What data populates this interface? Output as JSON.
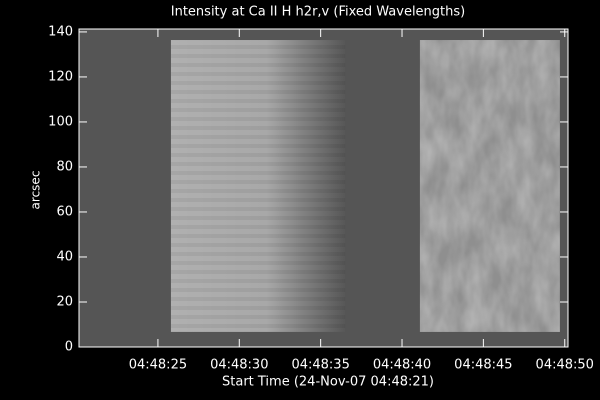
{
  "chart_data": {
    "type": "image",
    "title": "Intensity at Ca II H h2r,v (Fixed Wavelengths)",
    "xlabel": "Start Time (24-Nov-07 04:48:21)",
    "ylabel": "arcsec",
    "xlim": [
      20.15,
      50.2
    ],
    "xticks": [
      {
        "value": 25,
        "label": "04:48:25"
      },
      {
        "value": 30,
        "label": "04:48:30"
      },
      {
        "value": 35,
        "label": "04:48:35"
      },
      {
        "value": 40,
        "label": "04:48:40"
      },
      {
        "value": 45,
        "label": "04:48:45"
      },
      {
        "value": 50,
        "label": "04:48:50"
      }
    ],
    "ylim": [
      0,
      141.3
    ],
    "yticks": [
      0,
      20,
      40,
      60,
      80,
      100,
      120,
      140
    ],
    "images": [
      {
        "x": [
          25.8,
          36.5
        ],
        "y": [
          6.7,
          136.4
        ]
      },
      {
        "x": [
          41.1,
          49.7
        ],
        "y": [
          6.7,
          136.4
        ]
      }
    ]
  }
}
